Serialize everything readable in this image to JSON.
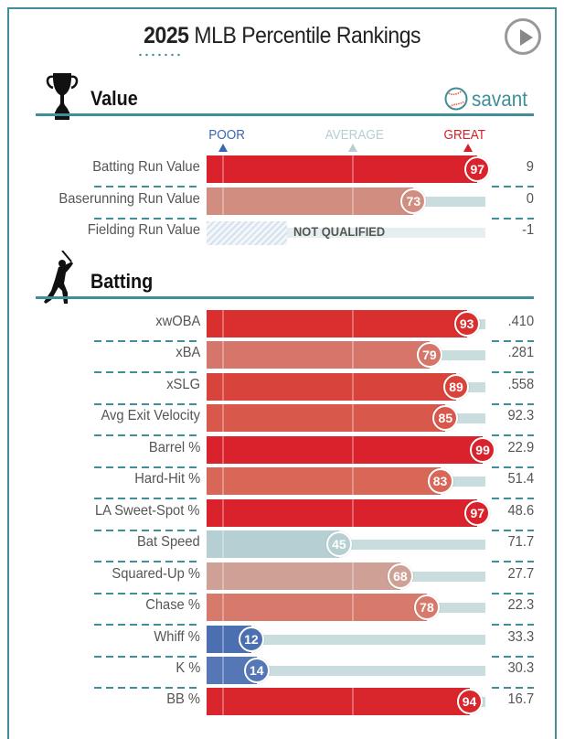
{
  "header": {
    "title_year": "2025",
    "title_rest": " MLB Percentile Rankings",
    "play_button": "play-icon"
  },
  "colors": {
    "accent": "#3f8f98",
    "poor": "#3b66b0",
    "average": "#b5cfd2",
    "great": "#d42028"
  },
  "scale": {
    "poor": "POOR",
    "average": "AVERAGE",
    "great": "GREAT"
  },
  "brand": {
    "text": "savant",
    "icon": "baseball-icon"
  },
  "sections": [
    {
      "title": "Value",
      "icon": "trophy-icon",
      "rows": [
        {
          "label": "Batting Run Value",
          "pct": 97,
          "value": "9",
          "color": "#d9222b",
          "qualified": true
        },
        {
          "label": "Baserunning Run Value",
          "pct": 73,
          "value": "0",
          "color": "#d18d80",
          "qualified": true
        },
        {
          "label": "Fielding Run Value",
          "pct": null,
          "value": "-1",
          "qualified": false,
          "note": "NOT QUALIFIED"
        }
      ]
    },
    {
      "title": "Batting",
      "icon": "batter-icon",
      "rows": [
        {
          "label": "xwOBA",
          "pct": 93,
          "value": ".410",
          "color": "#d92f2f",
          "qualified": true
        },
        {
          "label": "xBA",
          "pct": 79,
          "value": ".281",
          "color": "#d6766a",
          "qualified": true
        },
        {
          "label": "xSLG",
          "pct": 89,
          "value": ".558",
          "color": "#d8443b",
          "qualified": true
        },
        {
          "label": "Avg Exit Velocity",
          "pct": 85,
          "value": "92.3",
          "color": "#d8584c",
          "qualified": true
        },
        {
          "label": "Barrel %",
          "pct": 99,
          "value": "22.9",
          "color": "#d9222b",
          "qualified": true
        },
        {
          "label": "Hard-Hit %",
          "pct": 83,
          "value": "51.4",
          "color": "#d86757",
          "qualified": true
        },
        {
          "label": "LA Sweet-Spot %",
          "pct": 97,
          "value": "48.6",
          "color": "#d9222b",
          "qualified": true
        },
        {
          "label": "Bat Speed",
          "pct": 45,
          "value": "71.7",
          "color": "#b5cfd2",
          "qualified": true
        },
        {
          "label": "Squared-Up %",
          "pct": 68,
          "value": "27.7",
          "color": "#cea096",
          "qualified": true
        },
        {
          "label": "Chase %",
          "pct": 78,
          "value": "22.3",
          "color": "#d7796b",
          "qualified": true
        },
        {
          "label": "Whiff %",
          "pct": 12,
          "value": "33.3",
          "color": "#4c6fb2",
          "qualified": true
        },
        {
          "label": "K %",
          "pct": 14,
          "value": "30.3",
          "color": "#5577b5",
          "qualified": true
        },
        {
          "label": "BB %",
          "pct": 94,
          "value": "16.7",
          "color": "#d9262c",
          "qualified": true
        }
      ]
    }
  ]
}
